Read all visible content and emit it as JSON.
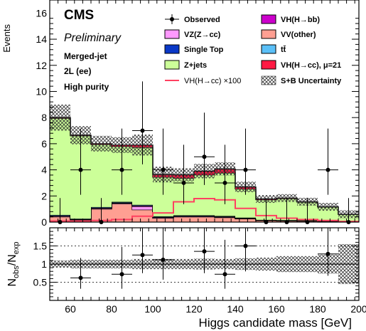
{
  "chart_data": [
    {
      "type": "bar",
      "subtype": "stacked-histogram-with-data-points",
      "ylabel": "Events",
      "ylim": [
        0,
        17
      ],
      "yticks": [
        "0",
        "2",
        "4",
        "6",
        "8",
        "10",
        "12",
        "14",
        "16"
      ],
      "xlim": [
        50,
        200
      ],
      "bin_edges": [
        50,
        60,
        70,
        80,
        90,
        100,
        110,
        120,
        130,
        140,
        150,
        160,
        170,
        180,
        190,
        200
      ],
      "texts": {
        "experiment": "CMS",
        "status": "Preliminary",
        "category_lines": [
          "Merged-jet",
          "2L (ee)",
          "High purity"
        ]
      },
      "legend": {
        "placement": "top-right",
        "entries": [
          {
            "key": "obs",
            "label": "Observed",
            "style": "marker"
          },
          {
            "key": "vhbb",
            "label": "VH(H→bb)",
            "style": "fill"
          },
          {
            "key": "vzcc",
            "label": "VZ(Z→cc)",
            "style": "fill"
          },
          {
            "key": "vvother",
            "label": "VV(other)",
            "style": "fill"
          },
          {
            "key": "stop",
            "label": "Single Top",
            "style": "fill"
          },
          {
            "key": "ttbar",
            "label": "tt̄",
            "style": "fill"
          },
          {
            "key": "zjets",
            "label": "Z+jets",
            "style": "fill"
          },
          {
            "key": "vhcc",
            "label": "VH(H→cc), μ=21",
            "style": "fill"
          },
          {
            "key": "vhcc100",
            "label": "VH(H→cc) ×100",
            "style": "line"
          },
          {
            "key": "unc",
            "label": "S+B Uncertainty",
            "style": "hatch"
          }
        ]
      },
      "colors": {
        "zjets": "#ccff99",
        "vvother": "#ff9f92",
        "vzcc": "#ff99ff",
        "vhbb": "#cc00cc",
        "stop": "#0a38c7",
        "ttbar": "#5bc0f8",
        "vhcc": "#ff1a44",
        "vhcc100": "#ff4060",
        "data": "#000000"
      },
      "series": [
        {
          "key": "vvother",
          "values": [
            0.4,
            0.15,
            1.0,
            1.4,
            0.95,
            0.3,
            0.4,
            0.4,
            0.35,
            0.25,
            0.12,
            0.1,
            0.08,
            0.06,
            0.05
          ]
        },
        {
          "key": "vzcc",
          "values": [
            0.05,
            0.03,
            0.05,
            0.05,
            0.25,
            0.05,
            0.03,
            0.03,
            0.03,
            0.02,
            0.01,
            0.01,
            0.01,
            0.01,
            0.01
          ]
        },
        {
          "key": "vhbb",
          "values": [
            0.03,
            0.02,
            0.03,
            0.03,
            0.05,
            0.03,
            0.03,
            0.03,
            0.03,
            0.02,
            0.01,
            0.01,
            0.01,
            0.01,
            0.01
          ]
        },
        {
          "key": "stop",
          "values": [
            0.02,
            0.02,
            0.02,
            0.02,
            0.02,
            0.02,
            0.02,
            0.02,
            0.02,
            0.02,
            0.01,
            0.01,
            0.01,
            0.01,
            0.01
          ]
        },
        {
          "key": "ttbar",
          "values": [
            0.05,
            0.04,
            0.05,
            0.05,
            0.05,
            0.04,
            0.04,
            0.04,
            0.04,
            0.03,
            0.02,
            0.02,
            0.02,
            0.01,
            0.01
          ]
        },
        {
          "key": "zjets",
          "values": [
            7.4,
            6.35,
            4.8,
            4.25,
            4.4,
            3.0,
            2.85,
            3.1,
            3.3,
            2.2,
            1.55,
            1.65,
            1.4,
            1.05,
            0.5
          ]
        },
        {
          "key": "vhcc",
          "values": [
            0.05,
            0.04,
            0.05,
            0.1,
            0.18,
            0.2,
            0.25,
            0.28,
            0.3,
            0.15,
            0.05,
            0.04,
            0.03,
            0.02,
            0.01
          ]
        }
      ],
      "vhcc_x100": [
        0.08,
        0.08,
        0.12,
        0.2,
        0.45,
        0.7,
        1.55,
        1.8,
        1.7,
        1.05,
        0.5,
        0.3,
        0.2,
        0.12,
        0.05
      ],
      "uncertainty": [
        1.0,
        0.7,
        0.6,
        0.6,
        0.8,
        0.6,
        0.5,
        0.55,
        0.5,
        0.4,
        0.3,
        0.3,
        0.3,
        0.3,
        0.3
      ],
      "observed": {
        "x": [
          55,
          65,
          75,
          85,
          95,
          105,
          115,
          125,
          135,
          145,
          155,
          165,
          175,
          185,
          195
        ],
        "y": [
          0,
          4,
          0,
          4,
          7,
          4,
          3,
          5,
          3,
          4,
          0,
          0,
          0,
          4,
          0
        ],
        "err_low": [
          0,
          1.91,
          0,
          1.91,
          2.58,
          1.91,
          1.63,
          2.16,
          1.63,
          1.91,
          0,
          0,
          0,
          1.91,
          0
        ],
        "err_high": [
          1.84,
          3.16,
          1.84,
          3.16,
          3.77,
          3.16,
          2.92,
          3.38,
          2.92,
          3.16,
          1.84,
          1.84,
          1.84,
          3.16,
          1.84
        ]
      }
    },
    {
      "type": "scatter",
      "subtype": "ratio-panel",
      "ylabel": "N_obs/N_exp",
      "xlabel": "Higgs candidate mass [GeV]",
      "xlim": [
        50,
        200
      ],
      "ylim": [
        0,
        2
      ],
      "yticks": [
        "0.5",
        "1",
        "1.5"
      ],
      "xticks": [
        "60",
        "80",
        "100",
        "120",
        "140",
        "160",
        "180",
        "200"
      ],
      "gridlines_y": [
        0.5,
        1.0,
        1.5
      ],
      "ratio_band": [
        [
          0.9,
          1.1
        ],
        [
          0.88,
          1.12
        ],
        [
          0.88,
          1.12
        ],
        [
          0.88,
          1.12
        ],
        [
          0.86,
          1.14
        ],
        [
          0.86,
          1.14
        ],
        [
          0.86,
          1.14
        ],
        [
          0.85,
          1.15
        ],
        [
          0.86,
          1.14
        ],
        [
          0.84,
          1.16
        ],
        [
          0.82,
          1.18
        ],
        [
          0.78,
          1.22
        ],
        [
          0.78,
          1.22
        ],
        [
          0.74,
          1.26
        ],
        [
          0.45,
          1.55
        ]
      ],
      "points": {
        "x": [
          65,
          85,
          95,
          105,
          125,
          135,
          145,
          185
        ],
        "y": [
          0.62,
          0.72,
          1.25,
          1.12,
          1.35,
          0.72,
          1.5,
          1.28
        ],
        "err_low": [
          0.3,
          0.4,
          0.5,
          0.55,
          0.6,
          0.4,
          0.7,
          0.6
        ],
        "err_high": [
          0.55,
          0.75,
          1.1,
          0.95,
          1.2,
          0.95,
          1.3,
          1.3
        ]
      }
    }
  ]
}
